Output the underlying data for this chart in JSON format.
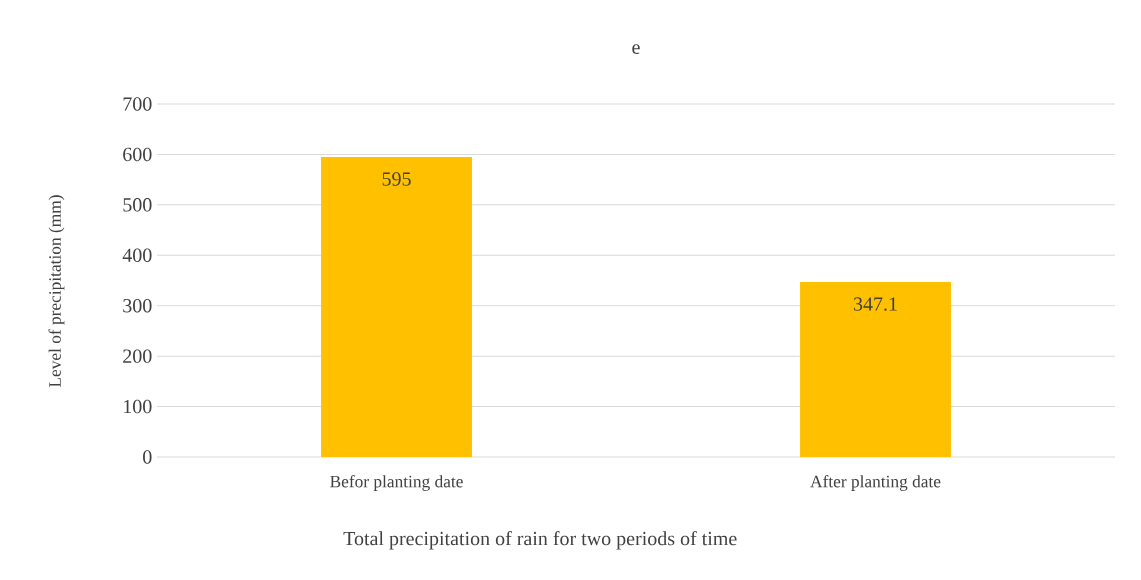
{
  "chart_data": {
    "type": "bar",
    "title": "e",
    "xlabel": "Total precipitation of rain for two periods of time",
    "ylabel": "Level of precipitation  (mm)",
    "categories": [
      "Befor planting date",
      "After planting date"
    ],
    "values": [
      595,
      347.1
    ],
    "color": "#ffc000",
    "ylim": [
      0,
      700
    ],
    "yticks": [
      0,
      100,
      200,
      300,
      400,
      500,
      600,
      700
    ],
    "grid": "y",
    "data_labels": true
  }
}
